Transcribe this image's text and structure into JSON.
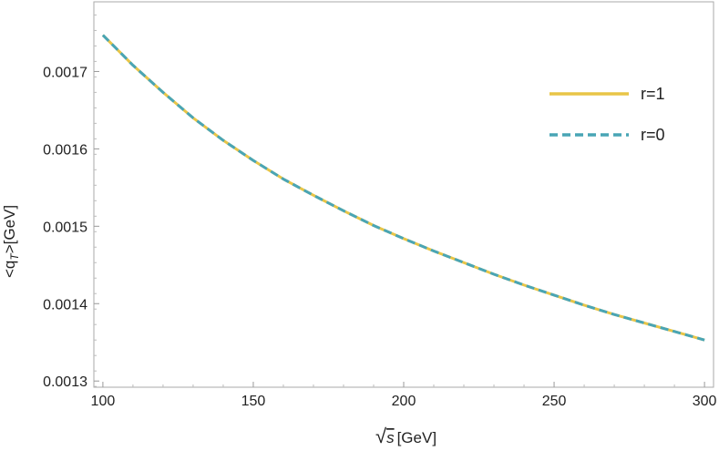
{
  "chart_data": {
    "type": "line",
    "xlabel_prefix": "√",
    "xlabel_var": "s",
    "xlabel_unit": "[GeV]",
    "ylabel_main": "<q",
    "ylabel_sub": "T",
    "ylabel_unit": ">[GeV]",
    "xlim": [
      97,
      303
    ],
    "ylim": [
      0.001292,
      0.00179
    ],
    "x_ticks": [
      100,
      150,
      200,
      250,
      300
    ],
    "y_ticks": [
      0.0013,
      0.0014,
      0.0015,
      0.0016,
      0.0017
    ],
    "y_tick_labels": [
      "0.0013",
      "0.0014",
      "0.0015",
      "0.0016",
      "0.0017"
    ],
    "x": [
      100,
      110,
      120,
      130,
      140,
      150,
      160,
      170,
      180,
      190,
      200,
      210,
      220,
      230,
      240,
      250,
      260,
      270,
      280,
      290,
      300
    ],
    "series": [
      {
        "name": "r=1",
        "color": "#E8C547",
        "style": "solid",
        "values": [
          0.001747,
          0.001708,
          0.001673,
          0.00164,
          0.001611,
          0.001585,
          0.001561,
          0.00154,
          0.00152,
          0.001501,
          0.001484,
          0.001468,
          0.001453,
          0.001438,
          0.001424,
          0.001411,
          0.001398,
          0.001386,
          0.001375,
          0.001364,
          0.001353
        ]
      },
      {
        "name": "r=0",
        "color": "#49A5B5",
        "style": "dashed",
        "values": [
          0.001747,
          0.001708,
          0.001673,
          0.00164,
          0.001611,
          0.001585,
          0.001561,
          0.00154,
          0.00152,
          0.001501,
          0.001484,
          0.001468,
          0.001453,
          0.001438,
          0.001424,
          0.001411,
          0.001398,
          0.001386,
          0.001375,
          0.001364,
          0.001353
        ]
      }
    ],
    "grid": false,
    "legend_position": "right"
  }
}
